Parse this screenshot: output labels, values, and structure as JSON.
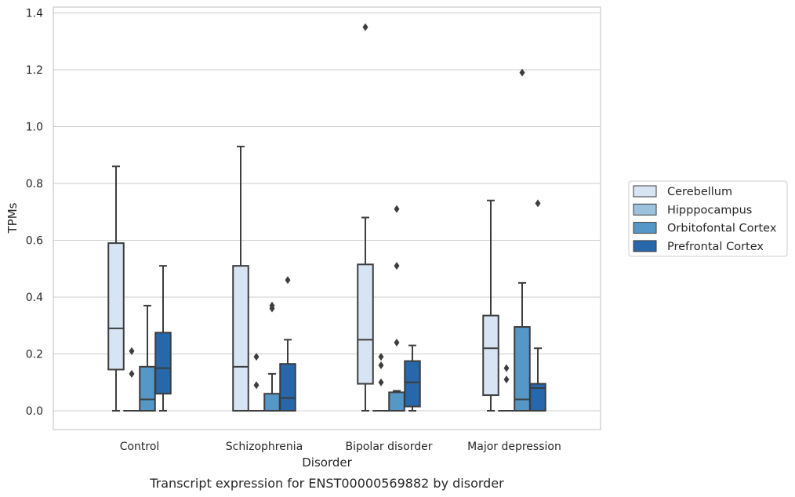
{
  "chart_data": {
    "type": "box",
    "caption": "Transcript expression for ENST00000569882 by disorder",
    "xlabel": "Disorder",
    "ylabel": "TPMs",
    "categories": [
      "Control",
      "Schizophrenia",
      "Bipolar disorder",
      "Major depression"
    ],
    "ylim": [
      -0.065,
      1.42
    ],
    "yticks": [
      0.0,
      0.2,
      0.4,
      0.6,
      0.8,
      1.0,
      1.2,
      1.4
    ],
    "ytick_labels": [
      "0.0",
      "0.2",
      "0.4",
      "0.6",
      "0.8",
      "1.0",
      "1.2",
      "1.4"
    ],
    "grid": "horizontal",
    "legend_position": "right",
    "series": [
      {
        "name": "Cerebellum",
        "color": "#d6e4f3",
        "boxes": [
          {
            "whislo": 0.0,
            "q1": 0.145,
            "med": 0.29,
            "q3": 0.59,
            "whishi": 0.86,
            "fliers": []
          },
          {
            "whislo": 0.0,
            "q1": 0.0,
            "med": 0.155,
            "q3": 0.51,
            "whishi": 0.93,
            "fliers": []
          },
          {
            "whislo": 0.0,
            "q1": 0.095,
            "med": 0.25,
            "q3": 0.515,
            "whishi": 0.68,
            "fliers": [
              1.35
            ]
          },
          {
            "whislo": 0.0,
            "q1": 0.055,
            "med": 0.22,
            "q3": 0.335,
            "whishi": 0.74,
            "fliers": []
          }
        ]
      },
      {
        "name": "Hipppocampus",
        "color": "#9cc3de",
        "boxes": [
          {
            "whislo": 0.0,
            "q1": 0.0,
            "med": 0.0,
            "q3": 0.0,
            "whishi": 0.0,
            "fliers": [
              0.13,
              0.21
            ]
          },
          {
            "whislo": 0.0,
            "q1": 0.0,
            "med": 0.0,
            "q3": 0.0,
            "whishi": 0.0,
            "fliers": [
              0.09,
              0.19
            ]
          },
          {
            "whislo": 0.0,
            "q1": 0.0,
            "med": 0.0,
            "q3": 0.0,
            "whishi": 0.0,
            "fliers": [
              0.1,
              0.16,
              0.19
            ]
          },
          {
            "whislo": 0.0,
            "q1": 0.0,
            "med": 0.0,
            "q3": 0.0,
            "whishi": 0.0,
            "fliers": [
              0.11,
              0.15
            ]
          }
        ]
      },
      {
        "name": "Orbitofontal Cortex",
        "color": "#5597c7",
        "boxes": [
          {
            "whislo": 0.0,
            "q1": 0.0,
            "med": 0.04,
            "q3": 0.155,
            "whishi": 0.37,
            "fliers": []
          },
          {
            "whislo": 0.0,
            "q1": 0.0,
            "med": 0.0,
            "q3": 0.06,
            "whishi": 0.13,
            "fliers": [
              0.36,
              0.37
            ]
          },
          {
            "whislo": 0.0,
            "q1": 0.0,
            "med": 0.0,
            "q3": 0.065,
            "whishi": 0.07,
            "fliers": [
              0.24,
              0.51,
              0.71
            ]
          },
          {
            "whislo": 0.0,
            "q1": 0.0,
            "med": 0.04,
            "q3": 0.295,
            "whishi": 0.45,
            "fliers": [
              1.19
            ]
          }
        ]
      },
      {
        "name": "Prefrontal Cortex",
        "color": "#2767ac",
        "boxes": [
          {
            "whislo": 0.0,
            "q1": 0.06,
            "med": 0.15,
            "q3": 0.275,
            "whishi": 0.51,
            "fliers": []
          },
          {
            "whislo": 0.0,
            "q1": 0.0,
            "med": 0.045,
            "q3": 0.165,
            "whishi": 0.25,
            "fliers": [
              0.46
            ]
          },
          {
            "whislo": 0.0,
            "q1": 0.015,
            "med": 0.1,
            "q3": 0.175,
            "whishi": 0.23,
            "fliers": []
          },
          {
            "whislo": 0.0,
            "q1": 0.0,
            "med": 0.08,
            "q3": 0.095,
            "whishi": 0.22,
            "fliers": [
              0.73
            ]
          }
        ]
      }
    ]
  }
}
